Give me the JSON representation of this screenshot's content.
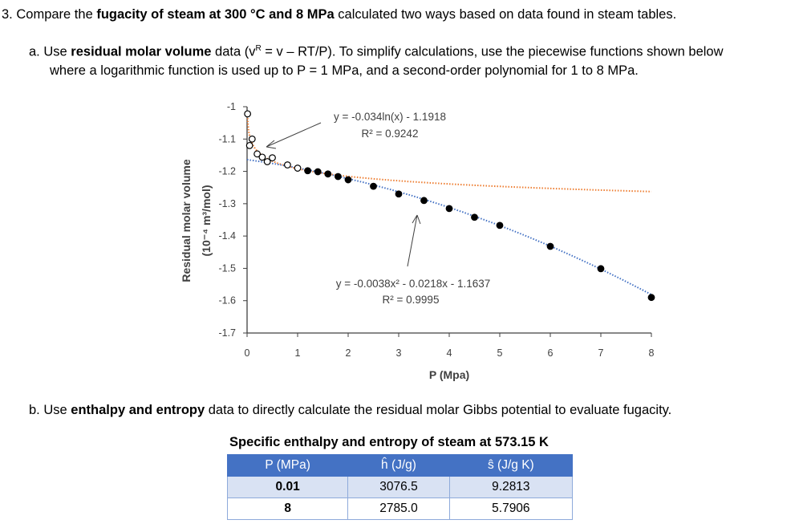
{
  "question": {
    "number": "3.",
    "intro_pre": "Compare the ",
    "intro_bold": "fugacity of steam at 300 °C and 8 MPa",
    "intro_post": " calculated two ways based on data found in steam tables.",
    "part_a": {
      "label": "a.",
      "pre": "Use ",
      "bold": "residual molar volume",
      "mid": " data (v",
      "sup": "R",
      "post": " = v – RT/P).  To simplify calculations, use the piecewise functions shown below",
      "line2": "where a logarithmic function is used up to P = 1 MPa, and a second-order polynomial for 1 to 8 MPa."
    },
    "part_b": {
      "label": "b.",
      "pre": "Use ",
      "bold": "enthalpy and entropy",
      "post": " data to directly calculate the residual molar Gibbs potential to evaluate fugacity."
    }
  },
  "chart_data": {
    "type": "scatter",
    "xlabel": "P (Mpa)",
    "ylabel_line1": "Residual molar volume",
    "ylabel_line2": "(10⁻⁴ m³/mol)",
    "xlim": [
      0,
      8
    ],
    "ylim": [
      -1.7,
      -1
    ],
    "xticks": [
      "0",
      "1",
      "2",
      "3",
      "4",
      "5",
      "6",
      "7",
      "8"
    ],
    "yticks": [
      "-1",
      "-1.1",
      "-1.2",
      "-1.3",
      "-1.4",
      "-1.5",
      "-1.6",
      "-1.7"
    ],
    "grid": false,
    "series": [
      {
        "marker": "open-circle",
        "x": [
          0.01,
          0.05,
          0.1,
          0.2,
          0.3,
          0.4,
          0.5,
          0.8,
          1.0
        ],
        "y": [
          -1.022,
          -1.12,
          -1.1,
          -1.146,
          -1.156,
          -1.17,
          -1.158,
          -1.18,
          -1.19
        ]
      },
      {
        "marker": "filled-circle",
        "x": [
          1.2,
          1.4,
          1.6,
          1.8,
          2.0,
          2.5,
          3.0,
          3.5,
          4.0,
          4.5,
          5.0,
          6.0,
          7.0,
          8.0
        ],
        "y": [
          -1.198,
          -1.201,
          -1.208,
          -1.216,
          -1.226,
          -1.246,
          -1.27,
          -1.29,
          -1.315,
          -1.342,
          -1.367,
          -1.432,
          -1.501,
          -1.59
        ]
      }
    ],
    "trendlines": [
      {
        "type": "log",
        "a": -0.034,
        "b": -1.1918,
        "color": "#ed7d31",
        "equation": "y = -0.034ln(x) - 1.1918",
        "r2": "R² = 0.9242"
      },
      {
        "type": "poly2",
        "a": -0.0038,
        "b": -0.0218,
        "c": -1.1637,
        "color": "#4472c4",
        "equation": "y = -0.0038x² - 0.0218x - 1.1637",
        "r2": "R² = 0.9995"
      }
    ]
  },
  "table": {
    "title": "Specific enthalpy and entropy of steam at 573.15 K",
    "headers": [
      "P (MPa)",
      "ĥ (J/g)",
      "ŝ (J/g K)"
    ],
    "rows": [
      [
        "0.01",
        "3076.5",
        "9.2813"
      ],
      [
        "8",
        "2785.0",
        "5.7906"
      ]
    ],
    "header_color": "#4472c4",
    "band_color": "#d9e2f3"
  }
}
